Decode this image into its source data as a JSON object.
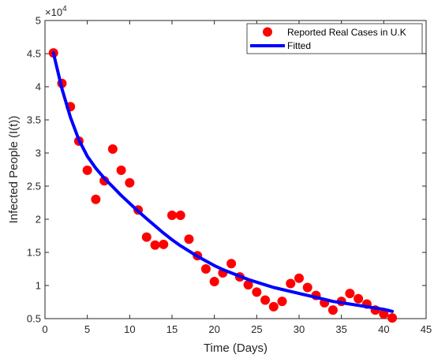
{
  "chart_data": {
    "type": "scatter",
    "xlabel": "Time (Days)",
    "ylabel": "Infected People (I(t))",
    "exponent_label": "×10",
    "exponent_power": "4",
    "xlim": [
      0,
      45
    ],
    "ylim": [
      5000,
      50000
    ],
    "xticks": [
      0,
      5,
      10,
      15,
      20,
      25,
      30,
      35,
      40,
      45
    ],
    "xtick_labels": [
      "0",
      "5",
      "10",
      "15",
      "20",
      "25",
      "30",
      "35",
      "40",
      "45"
    ],
    "yticks": [
      5000,
      10000,
      15000,
      20000,
      25000,
      30000,
      35000,
      40000,
      45000,
      50000
    ],
    "ytick_labels": [
      "0.5",
      "1",
      "1.5",
      "2",
      "2.5",
      "3",
      "3.5",
      "4",
      "4.5",
      "5"
    ],
    "grid": false,
    "legend_position": "top-right",
    "series": [
      {
        "name": "Reported Real Cases in U.K",
        "kind": "markers",
        "color": "#ff0000",
        "x": [
          1,
          2,
          3,
          4,
          5,
          6,
          7,
          8,
          9,
          10,
          11,
          12,
          13,
          14,
          15,
          16,
          17,
          18,
          19,
          20,
          21,
          22,
          23,
          24,
          25,
          26,
          27,
          28,
          29,
          30,
          31,
          32,
          33,
          34,
          35,
          36,
          37,
          38,
          39,
          40,
          41
        ],
        "y": [
          45100,
          40500,
          37000,
          31800,
          27400,
          23000,
          25800,
          30600,
          27400,
          25500,
          21400,
          17300,
          16100,
          16200,
          20600,
          20600,
          17000,
          14500,
          12500,
          10600,
          11900,
          13300,
          11300,
          10100,
          9000,
          7800,
          6800,
          7600,
          10300,
          11100,
          9700,
          8500,
          7400,
          6300,
          7600,
          8800,
          8000,
          7200,
          6300,
          5700,
          5100
        ]
      },
      {
        "name": "Fitted",
        "kind": "line",
        "color": "#0000ff",
        "x": [
          1,
          2,
          3,
          4,
          5,
          6,
          7,
          8,
          9,
          10,
          11,
          12,
          13,
          14,
          15,
          16,
          17,
          18,
          19,
          20,
          21,
          22,
          23,
          24,
          25,
          26,
          27,
          28,
          29,
          30,
          31,
          32,
          33,
          34,
          35,
          36,
          37,
          38,
          39,
          40,
          41
        ],
        "y": [
          45100,
          39700,
          35400,
          32000,
          29500,
          27700,
          26200,
          24900,
          23600,
          22400,
          21200,
          20100,
          19000,
          17900,
          16900,
          16000,
          15200,
          14400,
          13700,
          13000,
          12400,
          11900,
          11400,
          10900,
          10500,
          10100,
          9700,
          9400,
          9100,
          8800,
          8500,
          8200,
          7900,
          7600,
          7400,
          7200,
          7000,
          6800,
          6600,
          6400,
          6100
        ]
      }
    ]
  }
}
